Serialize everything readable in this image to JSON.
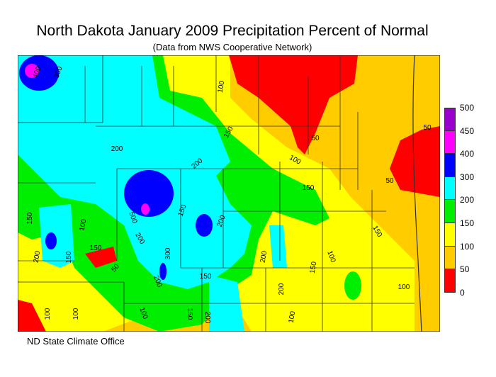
{
  "title": "North Dakota January 2009 Precipitation Percent of Normal",
  "subtitle": "(Data from NWS Cooperative Network)",
  "footer": "ND State Climate Office",
  "legend": {
    "ticks": [
      "500",
      "450",
      "400",
      "300",
      "200",
      "150",
      "100",
      "50",
      "0"
    ],
    "colors": [
      "#9900cc",
      "#ff00ff",
      "#0000ff",
      "#00ffff",
      "#00ee00",
      "#ffff00",
      "#ffcc00",
      "#ff0000"
    ]
  },
  "contour_labels": [
    "400",
    "300",
    "200",
    "150",
    "50",
    "100",
    "150",
    "50",
    "200",
    "200",
    "100",
    "150",
    "50",
    "200",
    "500",
    "150",
    "200",
    "150",
    "100",
    "150",
    "200",
    "150",
    "200",
    "100",
    "150",
    "300",
    "200",
    "100",
    "100",
    "150",
    "100",
    "50",
    "100",
    "150",
    "200",
    "100"
  ]
}
